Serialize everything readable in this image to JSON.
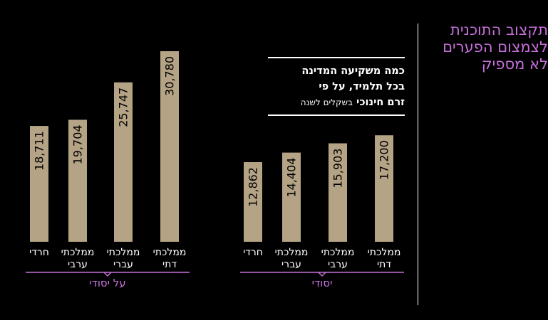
{
  "side_title": "תקצוב התוכנית לצמצום הפערים לא מספיק",
  "legend": {
    "line1": "כמה משקיעה המדינה",
    "line2": "בכל תלמיד, על פי",
    "line3_bold": "זרם חינוכי",
    "line3_sub": "בשקלים לשנה"
  },
  "colors": {
    "bar": "#b5a386",
    "accent": "#c86fdc",
    "background": "#000000",
    "text": "#ffffff"
  },
  "chart_data": [
    {
      "type": "bar",
      "title": "על יסודי",
      "categories": [
        "חרדי",
        "ממלכתי ערבי",
        "ממלכתי עברי",
        "ממלכתי דתי"
      ],
      "values": [
        18711,
        19704,
        25747,
        30780
      ],
      "value_labels": [
        "18,711",
        "19,704",
        "25,747",
        "30,780"
      ],
      "unit": "בשקלים לשנה"
    },
    {
      "type": "bar",
      "title": "יסודי",
      "categories": [
        "חרדי",
        "ממלכתי עברי",
        "ממלכתי ערבי",
        "ממלכתי דתי"
      ],
      "values": [
        12862,
        14404,
        15903,
        17200
      ],
      "value_labels": [
        "12,862",
        "14,404",
        "15,903",
        "17,200"
      ],
      "unit": "בשקלים לשנה"
    }
  ]
}
